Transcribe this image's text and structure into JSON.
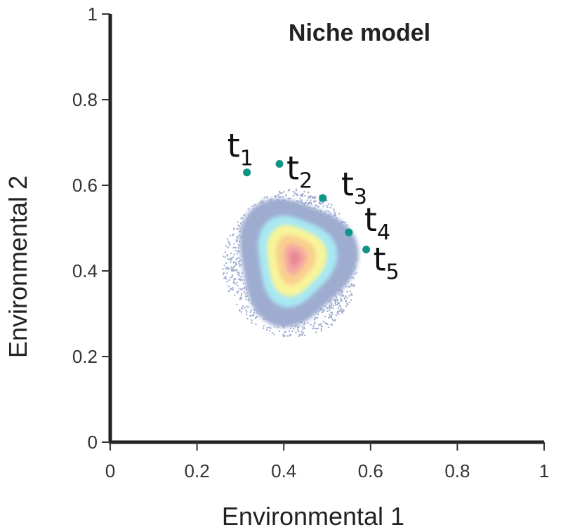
{
  "chart_data": {
    "type": "scatter",
    "title": "Niche model",
    "xlabel": "Environmental 1",
    "ylabel": "Environmental 2",
    "xlim": [
      0,
      1
    ],
    "ylim": [
      0,
      1
    ],
    "x_ticks": [
      0,
      0.2,
      0.4,
      0.6,
      0.8,
      1
    ],
    "x_tick_labels": [
      "0",
      "0.2",
      "0.4",
      "0.6",
      "0.8",
      "1"
    ],
    "y_ticks": [
      0,
      0.2,
      0.4,
      0.6,
      0.8,
      1
    ],
    "y_tick_labels": [
      "0",
      "0.2",
      "0.4",
      "0.6",
      "0.8",
      "1"
    ],
    "grid": false,
    "point_color": "#0f9488",
    "points": [
      {
        "label": "t",
        "subscript": "1",
        "x": 0.315,
        "y": 0.63
      },
      {
        "label": "t",
        "subscript": "2",
        "x": 0.39,
        "y": 0.65
      },
      {
        "label": "t",
        "subscript": "3",
        "x": 0.49,
        "y": 0.57
      },
      {
        "label": "t",
        "subscript": "4",
        "x": 0.55,
        "y": 0.49
      },
      {
        "label": "t",
        "subscript": "5",
        "x": 0.59,
        "y": 0.45
      }
    ],
    "density": {
      "center": [
        0.425,
        0.43
      ],
      "levels": [
        {
          "color": "#9eacd0",
          "rx": 0.135,
          "ry": 0.14
        },
        {
          "color": "#a8e8f3",
          "rx": 0.09,
          "ry": 0.1
        },
        {
          "color": "#f8f49a",
          "rx": 0.068,
          "ry": 0.078
        },
        {
          "color": "#f9cf90",
          "rx": 0.045,
          "ry": 0.055
        },
        {
          "color": "#f5a6a3",
          "rx": 0.025,
          "ry": 0.033
        },
        {
          "color": "#e58a93",
          "rx": 0.012,
          "ry": 0.017
        }
      ]
    }
  }
}
